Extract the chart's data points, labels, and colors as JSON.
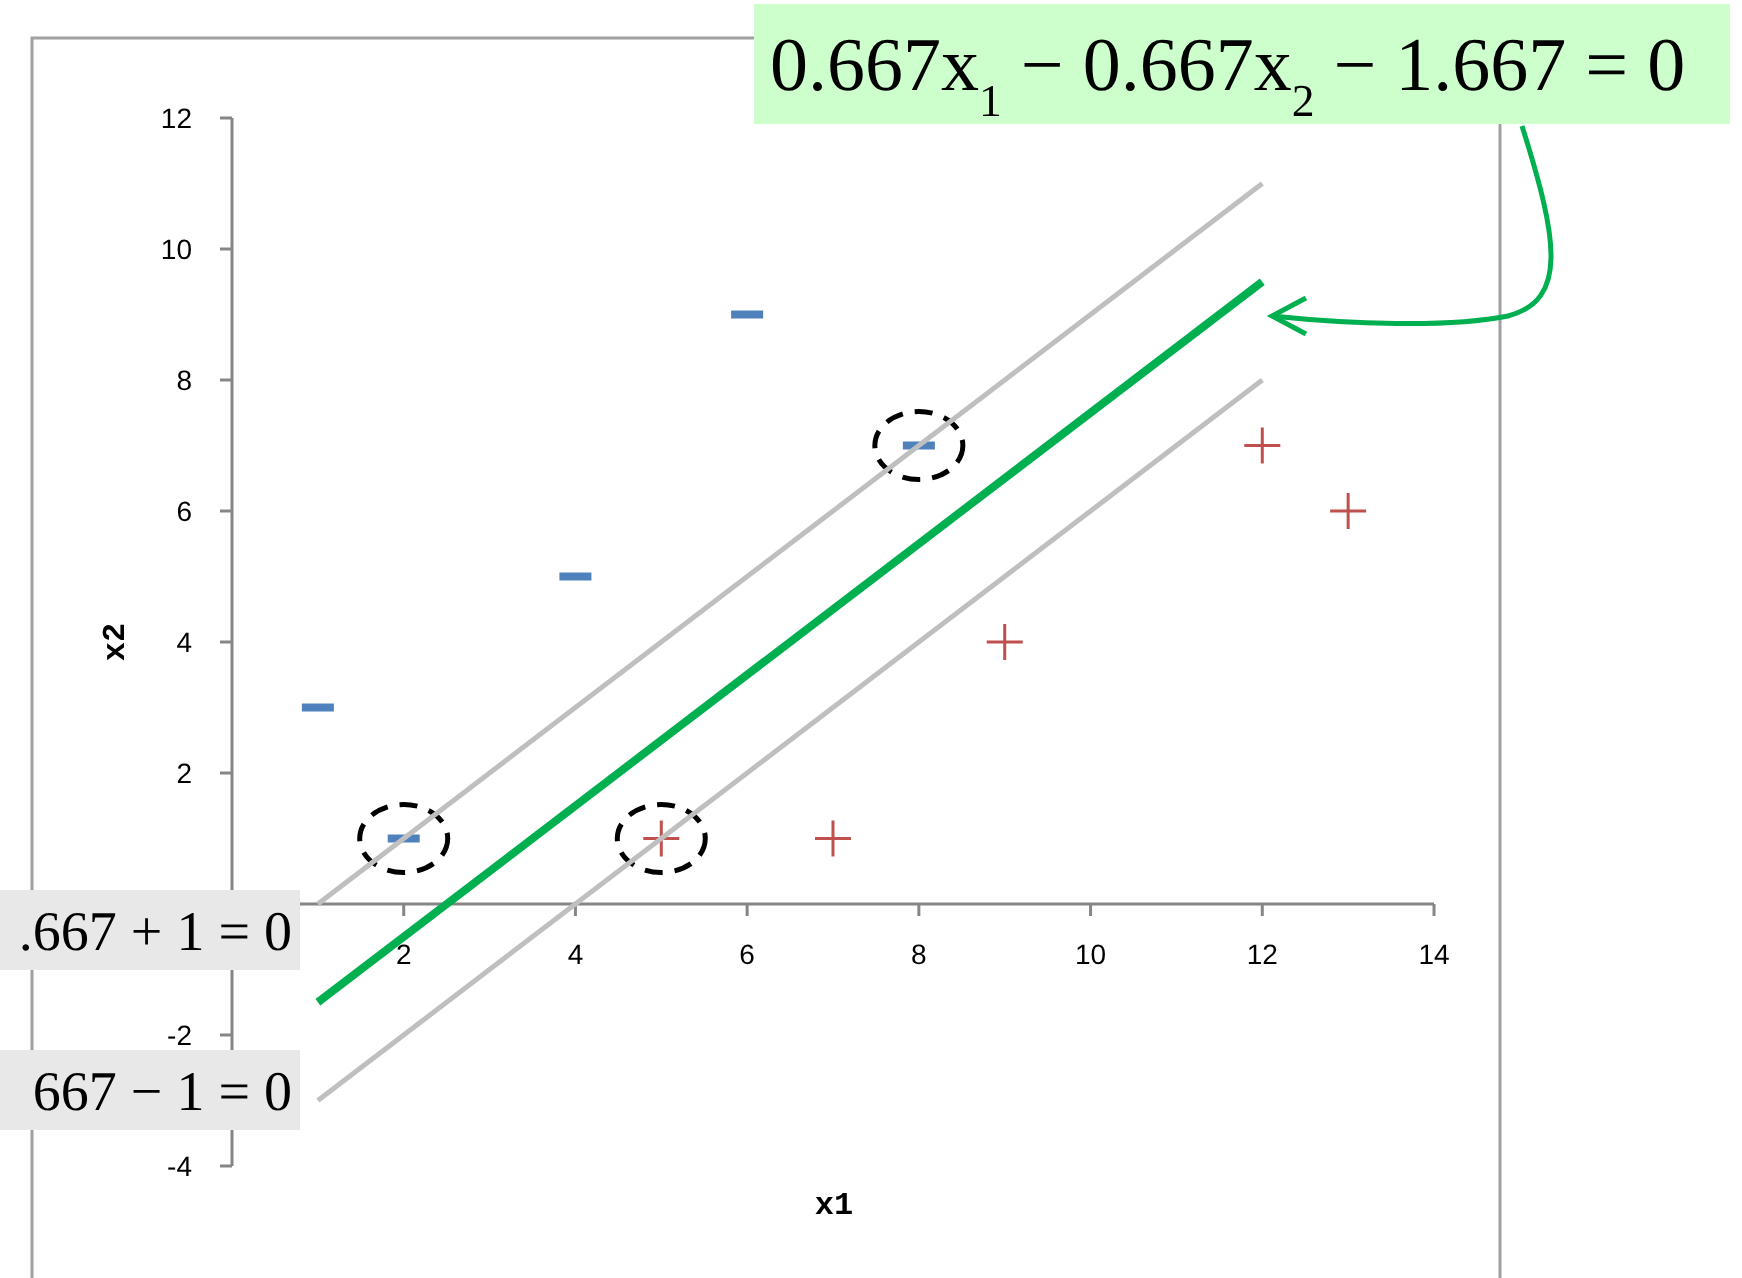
{
  "chart_data": {
    "type": "scatter",
    "xlabel": "x1",
    "ylabel": "x2",
    "xlim": [
      0,
      14
    ],
    "ylim": [
      -4,
      12
    ],
    "xticks": [
      2,
      4,
      6,
      8,
      10,
      12,
      14
    ],
    "yticks": [
      -4,
      -2,
      2,
      4,
      6,
      8,
      10,
      12
    ],
    "grid": false,
    "series": [
      {
        "color": "#4f81bd",
        "x": [
          1,
          2,
          4,
          6,
          8
        ],
        "values": [
          3,
          1,
          5,
          9,
          7
        ]
      },
      {
        "marker": "cross",
        "color": "#c0504d",
        "x": [
          5,
          7,
          9,
          12,
          13
        ],
        "values": [
          1,
          1,
          4,
          7,
          6
        ]
      },
      {
        "type": "line",
        "color": "#bfbfbf",
        "x": [
          1,
          12
        ],
        "values": [
          0,
          11
        ]
      },
      {
        "type": "line",
        "color": "#00b050",
        "x": [
          1,
          12
        ],
        "values": [
          -1.5,
          9.5
        ]
      },
      {
        "type": "line",
        "color": "#bfbfbf",
        "x": [
          1,
          12
        ],
        "values": [
          -3,
          8
        ]
      }
    ],
    "annotations": [
      "0.667x$_{1}$ − 0.667x$_{2}$ − 1.667 = 0",
      ".667 + 1 = 0",
      "667 − 1 = 0"
    ]
  }
}
